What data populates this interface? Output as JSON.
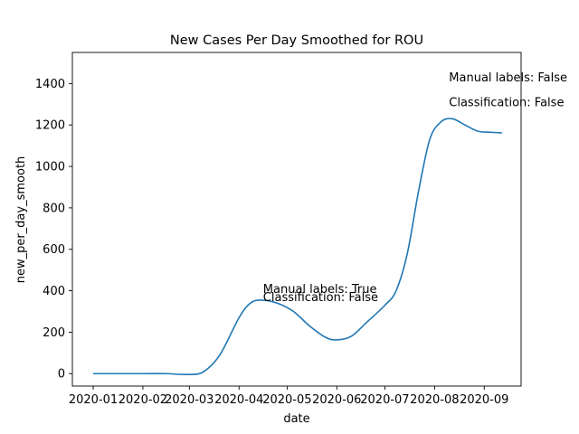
{
  "chart_data": {
    "type": "line",
    "title": "New Cases Per Day Smoothed for ROU",
    "xlabel": "date",
    "ylabel": "new_per_day_smooth",
    "xlim": [
      "2019-12-19",
      "2020-09-24"
    ],
    "ylim": [
      -60,
      1550
    ],
    "x_ticks": [
      "2020-01",
      "2020-02",
      "2020-03",
      "2020-04",
      "2020-05",
      "2020-06",
      "2020-07",
      "2020-08",
      "2020-09"
    ],
    "x_tick_dates": [
      "2020-01-01",
      "2020-02-01",
      "2020-03-01",
      "2020-04-01",
      "2020-05-01",
      "2020-06-01",
      "2020-07-01",
      "2020-08-01",
      "2020-09-01"
    ],
    "y_ticks": [
      0,
      200,
      400,
      600,
      800,
      1000,
      1200,
      1400
    ],
    "grid": false,
    "series": [
      {
        "color": "#1f77b4",
        "x": [
          "2020-01-01",
          "2020-01-15",
          "2020-02-01",
          "2020-02-15",
          "2020-03-01",
          "2020-03-10",
          "2020-03-20",
          "2020-04-01",
          "2020-04-08",
          "2020-04-15",
          "2020-04-25",
          "2020-05-05",
          "2020-05-15",
          "2020-05-25",
          "2020-06-01",
          "2020-06-10",
          "2020-06-20",
          "2020-07-01",
          "2020-07-08",
          "2020-07-15",
          "2020-07-22",
          "2020-07-29",
          "2020-08-05",
          "2020-08-12",
          "2020-08-20",
          "2020-08-28",
          "2020-09-05",
          "2020-09-12"
        ],
        "y": [
          0,
          0,
          0,
          0,
          -4,
          10,
          90,
          270,
          340,
          355,
          340,
          300,
          230,
          175,
          163,
          180,
          250,
          330,
          400,
          580,
          880,
          1130,
          1215,
          1230,
          1200,
          1170,
          1165,
          1162
        ]
      }
    ],
    "annotations": [
      {
        "text": "Manual labels: True",
        "x": "2020-04-16",
        "y": 390
      },
      {
        "text": "Classification: False",
        "x": "2020-04-16",
        "y": 350
      },
      {
        "text": "Manual labels: False",
        "x": "2020-08-10",
        "y": 1410
      },
      {
        "text": "Classification: False",
        "x": "2020-08-10",
        "y": 1290
      }
    ]
  }
}
